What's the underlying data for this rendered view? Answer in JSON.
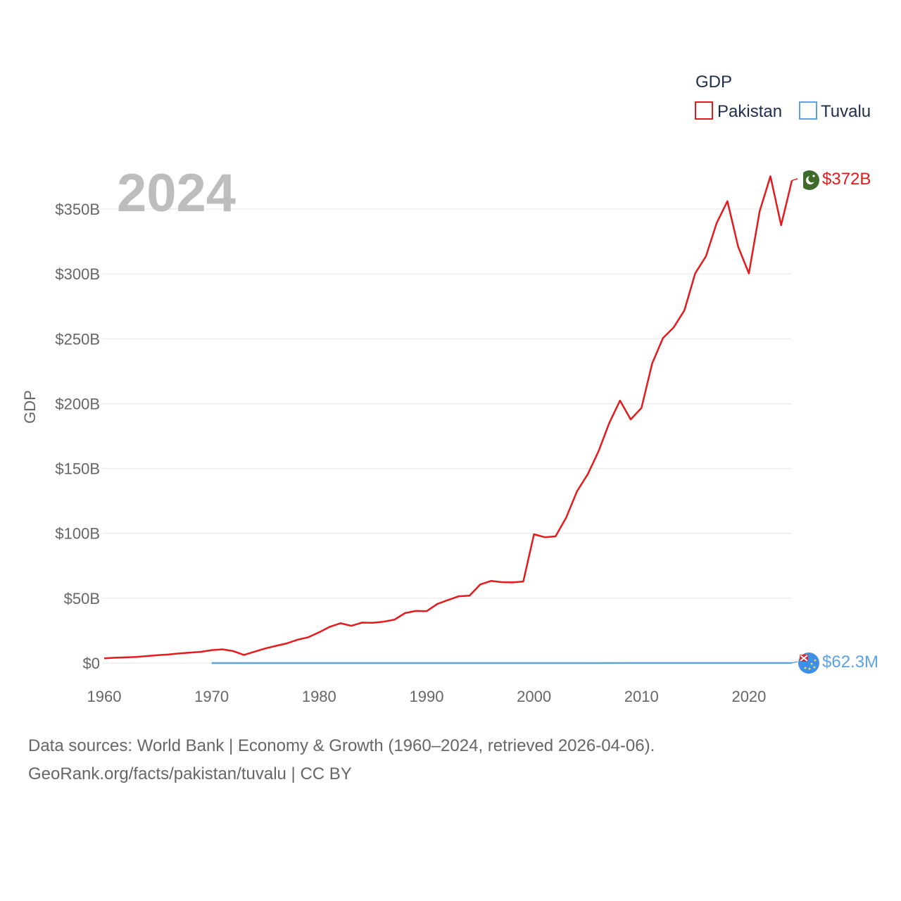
{
  "chart_data": {
    "type": "line",
    "title": "",
    "xlabel": "",
    "ylabel": "GDP",
    "xlim": [
      1960,
      2024
    ],
    "ylim": [
      0,
      350000000000
    ],
    "x_ticks": [
      1960,
      1970,
      1980,
      1990,
      2000,
      2010,
      2020
    ],
    "x_tick_labels": [
      "1960",
      "1970",
      "1980",
      "1990",
      "2000",
      "2010",
      "2020"
    ],
    "y_ticks": [
      0,
      50000000000,
      100000000000,
      150000000000,
      200000000000,
      250000000000,
      300000000000,
      350000000000
    ],
    "y_tick_labels": [
      "$0",
      "$50B",
      "$100B",
      "$150B",
      "$200B",
      "$250B",
      "$300B",
      "$350B"
    ],
    "year_label": "2024",
    "legend": {
      "title": "GDP",
      "position": "top-right"
    },
    "series": [
      {
        "name": "Pakistan",
        "color": "#e41a1c",
        "end_label": "$372B",
        "flag_icon": "pakistan-flag-icon",
        "x": [
          1960,
          1961,
          1962,
          1963,
          1964,
          1965,
          1966,
          1967,
          1968,
          1969,
          1970,
          1971,
          1972,
          1973,
          1974,
          1975,
          1976,
          1977,
          1978,
          1979,
          1980,
          1981,
          1982,
          1983,
          1984,
          1985,
          1986,
          1987,
          1988,
          1989,
          1990,
          1991,
          1992,
          1993,
          1994,
          1995,
          1996,
          1997,
          1998,
          1999,
          2000,
          2001,
          2002,
          2003,
          2004,
          2005,
          2006,
          2007,
          2008,
          2009,
          2010,
          2011,
          2012,
          2013,
          2014,
          2015,
          2016,
          2017,
          2018,
          2019,
          2020,
          2021,
          2022,
          2023,
          2024
        ],
        "values": [
          3700000000,
          4100000000,
          4400000000,
          4700000000,
          5400000000,
          6100000000,
          6700000000,
          7500000000,
          8100000000,
          8700000000,
          10000000000,
          10600000000,
          9300000000,
          6300000000,
          8800000000,
          11300000000,
          13300000000,
          15200000000,
          18000000000,
          19900000000,
          23700000000,
          28000000000,
          30700000000,
          28700000000,
          31200000000,
          31100000000,
          31900000000,
          33400000000,
          38500000000,
          40200000000,
          40000000000,
          45500000000,
          48600000000,
          51500000000,
          52000000000,
          60600000000,
          63300000000,
          62400000000,
          62200000000,
          62900000000,
          99300000000,
          97000000000,
          97700000000,
          112200000000,
          132400000000,
          145600000000,
          163100000000,
          185000000000,
          202400000000,
          187800000000,
          196700000000,
          231000000000,
          250500000000,
          258800000000,
          271900000000,
          300400000000,
          313600000000,
          339200000000,
          356100000000,
          320900000000,
          300400000000,
          348300000000,
          375300000000,
          337600000000,
          372000000000
        ]
      },
      {
        "name": "Tuvalu",
        "color": "#5ba3e6",
        "end_label": "$62.3M",
        "flag_icon": "tuvalu-flag-icon",
        "x": [
          1970,
          1975,
          1980,
          1985,
          1990,
          1995,
          2000,
          2005,
          2010,
          2015,
          2020,
          2023,
          2024
        ],
        "values": [
          6000000,
          7000000,
          8000000,
          9000000,
          10000000,
          11000000,
          13000000,
          22000000,
          32000000,
          36000000,
          55000000,
          61000000,
          62300000
        ]
      }
    ]
  },
  "footer": {
    "line1": "Data sources: World Bank | Economy & Growth (1960–2024, retrieved 2026-04-06).",
    "line2": "GeoRank.org/facts/pakistan/tuvalu | CC BY"
  }
}
